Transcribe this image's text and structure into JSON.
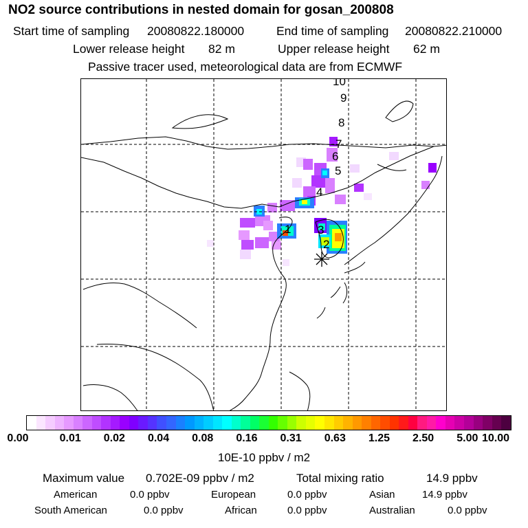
{
  "header": {
    "title": "NO2 source contributions in nested domain for gosan_200808",
    "start_label": "Start time of sampling",
    "start_value": "20080822.180000",
    "end_label": "End time of sampling",
    "end_value": "20080822.210000",
    "lower_label": "Lower release height",
    "lower_value": "82 m",
    "upper_label": "Upper release height",
    "upper_value": "62 m",
    "tracer_note": "Passive tracer used, meteorological data are from ECMWF"
  },
  "map": {
    "trajectory_labels": [
      "1",
      "2",
      "3",
      "4",
      "5",
      "6",
      "7",
      "8",
      "9",
      "10"
    ],
    "station_marker": "gosan"
  },
  "colorbar": {
    "tick_labels": [
      "0.00",
      "0.01",
      "0.02",
      "0.04",
      "0.08",
      "0.16",
      "0.31",
      "0.63",
      "1.25",
      "2.50",
      "5.00",
      "10.00"
    ],
    "unit": "10E-10 ppbv / m2",
    "colors": [
      "#ffffff",
      "#fbe6ff",
      "#f5ccff",
      "#eeb3ff",
      "#e699ff",
      "#d980ff",
      "#cc66ff",
      "#bf4dff",
      "#b233ff",
      "#a51aff",
      "#9900ff",
      "#7f00ff",
      "#6a1aff",
      "#5533ff",
      "#4050ff",
      "#3366ff",
      "#1a80ff",
      "#0099ff",
      "#00b3ff",
      "#00ccff",
      "#00e5ff",
      "#00ffff",
      "#00ffcc",
      "#00ff99",
      "#00ff66",
      "#1aff33",
      "#33ff00",
      "#66ff00",
      "#99ff00",
      "#ccff00",
      "#e6ff00",
      "#ffff00",
      "#ffe600",
      "#ffcc00",
      "#ffb300",
      "#ff9900",
      "#ff8000",
      "#ff6600",
      "#ff4d00",
      "#ff3300",
      "#ff1a1a",
      "#ff0040",
      "#ff1a80",
      "#ff1aa6",
      "#ff00cc",
      "#e600b3",
      "#cc00a6",
      "#b30099",
      "#990080",
      "#800066",
      "#660050",
      "#4d0040"
    ]
  },
  "stats": {
    "max_label": "Maximum value",
    "max_value": "0.702E-09 ppbv / m2",
    "total_label": "Total mixing ratio",
    "total_value": "14.9 ppbv",
    "regions": [
      {
        "name": "American",
        "value": "0.0 ppbv"
      },
      {
        "name": "European",
        "value": "0.0 ppbv"
      },
      {
        "name": "Asian",
        "value": "14.9 ppbv"
      },
      {
        "name": "South American",
        "value": "0.0 ppbv"
      },
      {
        "name": "African",
        "value": "0.0 ppbv"
      },
      {
        "name": "Australian",
        "value": "0.0 ppbv"
      }
    ]
  }
}
